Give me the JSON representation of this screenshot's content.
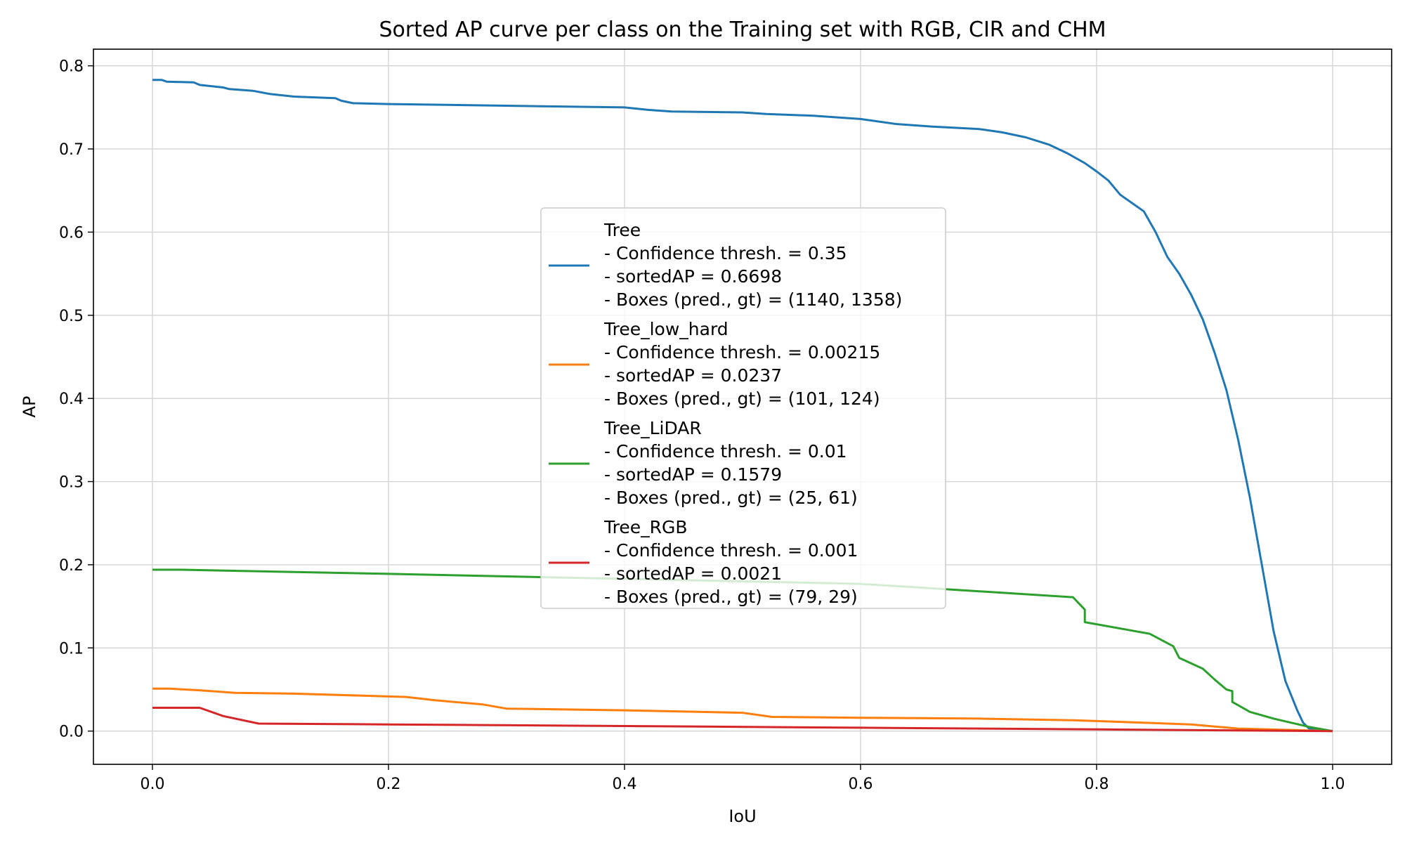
{
  "chart_data": {
    "type": "line",
    "title": "Sorted AP curve per class on the Training set with RGB, CIR and CHM",
    "xlabel": "IoU",
    "ylabel": "AP",
    "xlim": [
      -0.05,
      1.05
    ],
    "ylim": [
      -0.04,
      0.82
    ],
    "xticks": [
      "0.0",
      "0.2",
      "0.4",
      "0.6",
      "0.8",
      "1.0"
    ],
    "yticks": [
      "0.0",
      "0.1",
      "0.2",
      "0.3",
      "0.4",
      "0.5",
      "0.6",
      "0.7",
      "0.8"
    ],
    "grid": true,
    "legend_position": "center",
    "series": [
      {
        "name": "Tree",
        "legend_lines": [
          "Tree",
          "- Confidence thresh. = 0.35",
          "- sortedAP = 0.6698",
          "- Boxes (pred., gt) = (1140, 1358)"
        ],
        "color": "#1f77b4",
        "points": [
          [
            0.0,
            0.783
          ],
          [
            0.008,
            0.783
          ],
          [
            0.012,
            0.781
          ],
          [
            0.035,
            0.78
          ],
          [
            0.04,
            0.777
          ],
          [
            0.06,
            0.774
          ],
          [
            0.065,
            0.772
          ],
          [
            0.085,
            0.77
          ],
          [
            0.1,
            0.766
          ],
          [
            0.12,
            0.763
          ],
          [
            0.155,
            0.761
          ],
          [
            0.16,
            0.758
          ],
          [
            0.17,
            0.755
          ],
          [
            0.2,
            0.754
          ],
          [
            0.3,
            0.752
          ],
          [
            0.4,
            0.75
          ],
          [
            0.42,
            0.747
          ],
          [
            0.44,
            0.745
          ],
          [
            0.5,
            0.744
          ],
          [
            0.52,
            0.742
          ],
          [
            0.56,
            0.74
          ],
          [
            0.6,
            0.736
          ],
          [
            0.63,
            0.73
          ],
          [
            0.66,
            0.727
          ],
          [
            0.7,
            0.724
          ],
          [
            0.72,
            0.72
          ],
          [
            0.74,
            0.714
          ],
          [
            0.76,
            0.705
          ],
          [
            0.775,
            0.695
          ],
          [
            0.79,
            0.683
          ],
          [
            0.8,
            0.673
          ],
          [
            0.81,
            0.662
          ],
          [
            0.82,
            0.645
          ],
          [
            0.83,
            0.635
          ],
          [
            0.84,
            0.625
          ],
          [
            0.85,
            0.6
          ],
          [
            0.86,
            0.57
          ],
          [
            0.87,
            0.55
          ],
          [
            0.88,
            0.525
          ],
          [
            0.89,
            0.495
          ],
          [
            0.9,
            0.455
          ],
          [
            0.91,
            0.41
          ],
          [
            0.92,
            0.35
          ],
          [
            0.93,
            0.28
          ],
          [
            0.94,
            0.2
          ],
          [
            0.95,
            0.12
          ],
          [
            0.96,
            0.06
          ],
          [
            0.97,
            0.025
          ],
          [
            0.975,
            0.01
          ],
          [
            0.98,
            0.003
          ],
          [
            1.0,
            0.0
          ]
        ]
      },
      {
        "name": "Tree_low_hard",
        "legend_lines": [
          "Tree_low_hard",
          "- Confidence thresh. = 0.00215",
          "- sortedAP = 0.0237",
          "- Boxes (pred., gt) = (101, 124)"
        ],
        "color": "#ff7f0e",
        "points": [
          [
            0.0,
            0.051
          ],
          [
            0.015,
            0.051
          ],
          [
            0.04,
            0.049
          ],
          [
            0.07,
            0.046
          ],
          [
            0.12,
            0.045
          ],
          [
            0.215,
            0.041
          ],
          [
            0.24,
            0.037
          ],
          [
            0.28,
            0.032
          ],
          [
            0.3,
            0.027
          ],
          [
            0.4,
            0.025
          ],
          [
            0.5,
            0.022
          ],
          [
            0.525,
            0.017
          ],
          [
            0.6,
            0.016
          ],
          [
            0.7,
            0.015
          ],
          [
            0.78,
            0.013
          ],
          [
            0.8,
            0.012
          ],
          [
            0.88,
            0.008
          ],
          [
            0.92,
            0.003
          ],
          [
            1.0,
            0.0
          ]
        ]
      },
      {
        "name": "Tree_LiDAR",
        "legend_lines": [
          "Tree_LiDAR",
          "- Confidence thresh. = 0.01",
          "- sortedAP = 0.1579",
          "- Boxes (pred., gt) = (25, 61)"
        ],
        "color": "#2ca02c",
        "points": [
          [
            0.0,
            0.194
          ],
          [
            0.025,
            0.194
          ],
          [
            0.2,
            0.189
          ],
          [
            0.4,
            0.183
          ],
          [
            0.6,
            0.177
          ],
          [
            0.78,
            0.161
          ],
          [
            0.79,
            0.146
          ],
          [
            0.79,
            0.131
          ],
          [
            0.845,
            0.117
          ],
          [
            0.865,
            0.102
          ],
          [
            0.87,
            0.088
          ],
          [
            0.89,
            0.075
          ],
          [
            0.9,
            0.062
          ],
          [
            0.91,
            0.05
          ],
          [
            0.915,
            0.048
          ],
          [
            0.915,
            0.035
          ],
          [
            0.93,
            0.023
          ],
          [
            0.95,
            0.015
          ],
          [
            0.98,
            0.005
          ],
          [
            1.0,
            0.0
          ]
        ]
      },
      {
        "name": "Tree_RGB",
        "legend_lines": [
          "Tree_RGB",
          "- Confidence thresh. = 0.001",
          "- sortedAP = 0.0021",
          "- Boxes (pred., gt) = (79, 29)"
        ],
        "color": "#d62728",
        "points": [
          [
            0.0,
            0.028
          ],
          [
            0.04,
            0.028
          ],
          [
            0.06,
            0.018
          ],
          [
            0.09,
            0.009
          ],
          [
            0.2,
            0.008
          ],
          [
            0.4,
            0.006
          ],
          [
            0.6,
            0.004
          ],
          [
            0.8,
            0.002
          ],
          [
            1.0,
            0.0
          ]
        ]
      }
    ]
  }
}
